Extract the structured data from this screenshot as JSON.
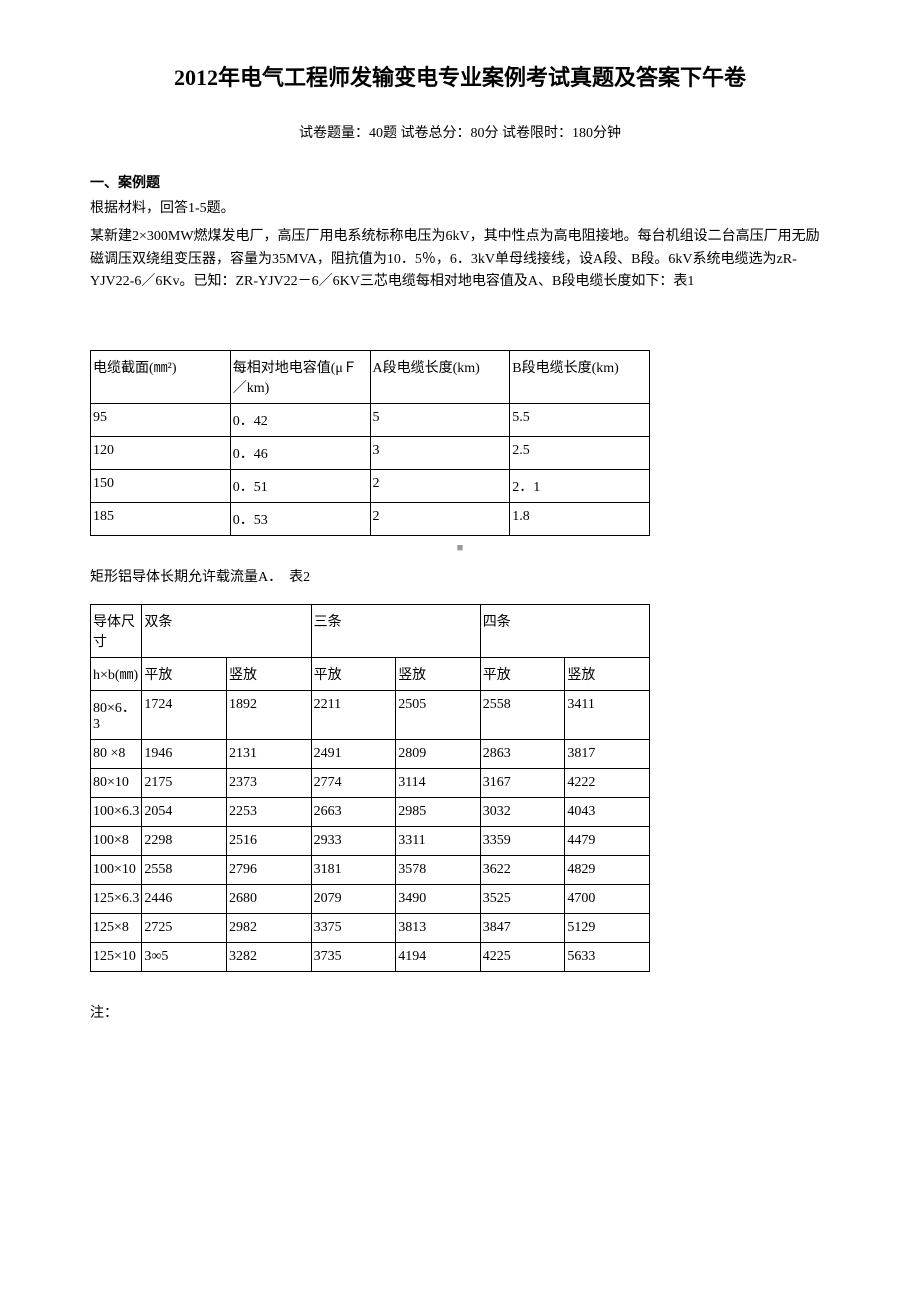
{
  "title": "2012年电气工程师发输变电专业案例考试真题及答案下午卷",
  "subtitle": "试卷题量：40题  试卷总分：80分  试卷限时：180分钟",
  "section_heading": "一、案例题",
  "intro_line": "根据材料，回答1-5题。",
  "problem_text": "某新建2×300MW燃煤发电厂，高压厂用电系统标称电压为6kV，其中性点为高电阻接地。每台机组设二台高压厂用无励磁调压双绕组变压器，容量为35MVA，阻抗值为10．5％，6．3kV单母线接线，设A段、B段。6kV系统电缆选为zR-YJV22-6／6Kv。已知：ZR-YJV22－6／6KV三芯电缆每相对地电容值及A、B段电缆长度如下：表1",
  "table1": {
    "headers": [
      "电缆截面(㎜²)",
      "每相对地电容值(μＦ／km)",
      "A段电缆长度(km)",
      "B段电缆长度(km)"
    ],
    "rows": [
      [
        "95",
        "0．42",
        "5",
        "5.5"
      ],
      [
        "120",
        "0．46",
        "3",
        "2.5"
      ],
      [
        "150",
        "0．51",
        "2",
        "2．1"
      ],
      [
        "185",
        "0．53",
        "2",
        "1.8"
      ]
    ]
  },
  "pagenum_marker": "■",
  "caption2": "矩形铝导体长期允许载流量A．　表2",
  "table2": {
    "header_row1": [
      "导体尺寸",
      "双条",
      "三条",
      "四条"
    ],
    "header_row2": [
      "h×b(㎜)",
      "平放",
      "竖放",
      "平放",
      "竖放",
      "平放",
      "竖放"
    ],
    "rows": [
      [
        "80×6．3",
        "1724",
        "1892",
        "2211",
        "2505",
        "2558",
        "3411"
      ],
      [
        "80 ×8",
        "1946",
        "2131",
        "2491",
        "2809",
        "2863",
        "3817"
      ],
      [
        "80×10",
        "2175",
        "2373",
        "2774",
        "3114",
        "3167",
        "4222"
      ],
      [
        "100×6.3",
        "2054",
        "2253",
        "2663",
        "2985",
        "3032",
        "4043"
      ],
      [
        "100×8",
        "2298",
        "2516",
        "2933",
        "3311",
        "3359",
        "4479"
      ],
      [
        "100×10",
        "2558",
        "2796",
        "3181",
        "3578",
        "3622",
        "4829"
      ],
      [
        "125×6.3",
        "2446",
        "2680",
        "2079",
        "3490",
        "3525",
        "4700"
      ],
      [
        "125×8",
        "2725",
        "2982",
        "3375",
        "3813",
        "3847",
        "5129"
      ],
      [
        "125×10",
        "3∞5",
        "3282",
        "3735",
        "4194",
        "4225",
        "5633"
      ]
    ]
  },
  "note_label": "注："
}
